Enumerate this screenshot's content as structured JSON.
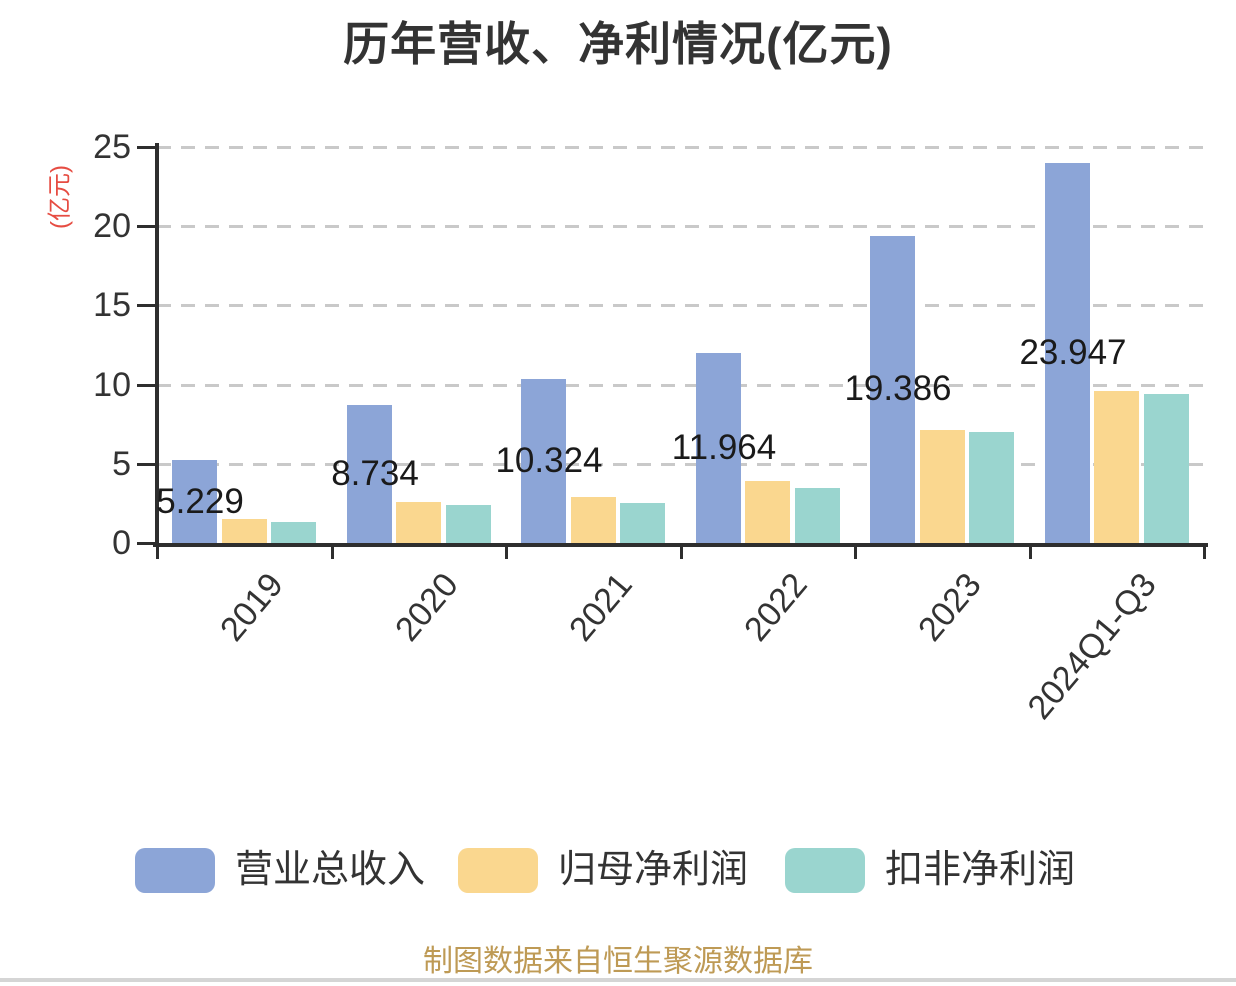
{
  "title": "历年营收、净利情况(亿元)",
  "y_axis": {
    "name": "(亿元)"
  },
  "footer": "制图数据来自恒生聚源数据库",
  "colors": {
    "revenue": "#8CA5D7",
    "net_profit": "#FAD78F",
    "deducted_net_profit": "#9AD5CF",
    "axis": "#2e2e2e",
    "grid": "#c9c9c9",
    "title_text": "#333333",
    "value_label_text": "#1a1a1a",
    "y_axis_name_text": "#e64c42",
    "footer_text": "#BE9A55",
    "divider": "#d5d5d5"
  },
  "chart_data": {
    "type": "bar",
    "title": "历年营收、净利情况(亿元)",
    "categories": [
      "2019",
      "2020",
      "2021",
      "2022",
      "2023",
      "2024Q1-Q3"
    ],
    "series": [
      {
        "name": "营业总收入",
        "color": "#8CA5D7",
        "values": [
          5.229,
          8.734,
          10.324,
          11.964,
          19.386,
          23.947
        ],
        "value_labels": [
          "5.229",
          "8.734",
          "10.324",
          "11.964",
          "19.386",
          "23.947"
        ]
      },
      {
        "name": "归母净利润",
        "color": "#FAD78F",
        "values": [
          1.5,
          2.6,
          2.9,
          3.9,
          7.1,
          9.6
        ]
      },
      {
        "name": "扣非净利润",
        "color": "#9AD5CF",
        "values": [
          1.3,
          2.4,
          2.5,
          3.5,
          7.0,
          9.4
        ]
      }
    ],
    "y_ticks": [
      0,
      5,
      10,
      15,
      20,
      25
    ],
    "ylim": [
      0,
      25
    ],
    "y_unit": "亿元",
    "grid": "dashed-horizontal",
    "legend_position": "bottom",
    "x_label_rotation_deg": -50
  }
}
